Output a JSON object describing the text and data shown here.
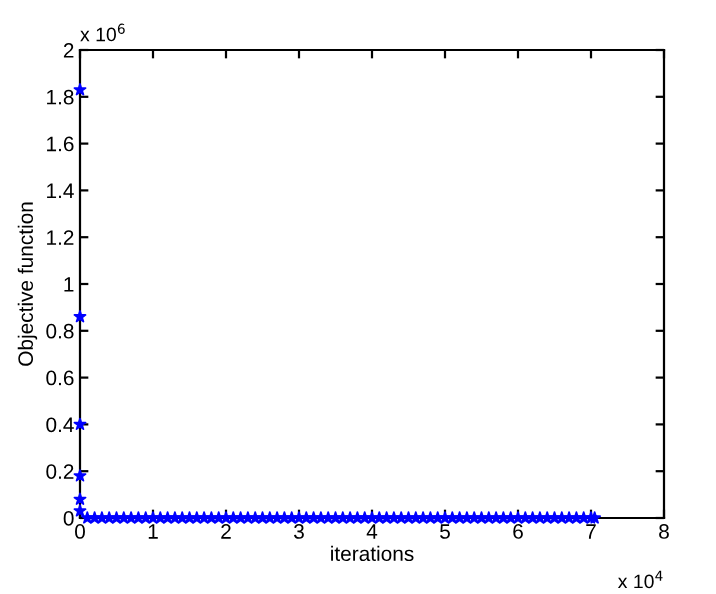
{
  "chart_data": {
    "type": "scatter",
    "xlabel": "iterations",
    "ylabel": "Objective function",
    "annotations": [
      "x 10$^{6}$",
      "x 10$^{4}$"
    ],
    "series": [
      {
        "color": "#0000ff",
        "x": [
          0,
          0,
          0,
          0,
          0,
          0,
          0.1,
          0.2,
          0.3,
          0.4,
          0.5,
          0.6,
          0.7,
          0.8,
          0.9,
          1.0,
          1.1,
          1.2,
          1.3,
          1.4,
          1.5,
          1.6,
          1.7,
          1.8,
          1.9,
          2.0,
          2.1,
          2.2,
          2.3,
          2.4,
          2.5,
          2.6,
          2.7,
          2.8,
          2.9,
          3.0,
          3.1,
          3.2,
          3.3,
          3.4,
          3.5,
          3.6,
          3.7,
          3.8,
          3.9,
          4.0,
          4.1,
          4.2,
          4.3,
          4.4,
          4.5,
          4.6,
          4.7,
          4.8,
          4.9,
          5.0,
          5.1,
          5.2,
          5.3,
          5.4,
          5.5,
          5.6,
          5.7,
          5.8,
          5.9,
          6.0,
          6.1,
          6.2,
          6.3,
          6.4,
          6.5,
          6.6,
          6.7,
          6.8,
          6.9,
          7.0,
          7.05
        ],
        "values": [
          1.83,
          0.86,
          0.4,
          0.18,
          0.08,
          0.03,
          0,
          0,
          0,
          0,
          0,
          0,
          0,
          0,
          0,
          0,
          0,
          0,
          0,
          0,
          0,
          0,
          0,
          0,
          0,
          0,
          0,
          0,
          0,
          0,
          0,
          0,
          0,
          0,
          0,
          0,
          0,
          0,
          0,
          0,
          0,
          0,
          0,
          0,
          0,
          0,
          0,
          0,
          0,
          0,
          0,
          0,
          0,
          0,
          0,
          0,
          0,
          0,
          0,
          0,
          0,
          0,
          0,
          0,
          0,
          0,
          0,
          0,
          0,
          0,
          0,
          0,
          0,
          0,
          0,
          0,
          0
        ]
      }
    ],
    "marker": "star",
    "xlim": [
      0,
      8
    ],
    "xticks": [
      0,
      1,
      2,
      3,
      4,
      5,
      6,
      7,
      8
    ],
    "ylim": [
      0,
      2
    ],
    "yticks": [
      0,
      0.2,
      0.4,
      0.6,
      0.8,
      1,
      1.2,
      1.4,
      1.6,
      1.8,
      2
    ],
    "grid": false,
    "legend": false
  }
}
